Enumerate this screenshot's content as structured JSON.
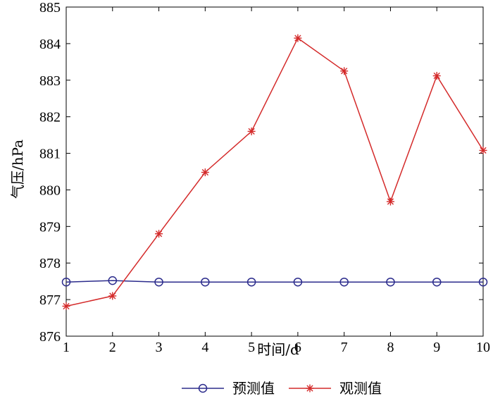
{
  "chart_data": {
    "type": "line",
    "title": "",
    "xlabel": "时间/d",
    "ylabel": "气压/hPa",
    "x": [
      1,
      2,
      3,
      4,
      5,
      6,
      7,
      8,
      9,
      10
    ],
    "xlim": [
      1,
      10
    ],
    "ylim": [
      876,
      885
    ],
    "xticks": [
      "1",
      "2",
      "3",
      "4",
      "5",
      "6",
      "7",
      "8",
      "9",
      "10"
    ],
    "yticks": [
      "876",
      "877",
      "878",
      "879",
      "880",
      "881",
      "882",
      "883",
      "884",
      "885"
    ],
    "grid": false,
    "legend_position": "bottom",
    "series": [
      {
        "name": "预测值",
        "marker": "circle",
        "color": "#2b2b8c",
        "values": [
          877.48,
          877.52,
          877.48,
          877.48,
          877.48,
          877.48,
          877.48,
          877.48,
          877.48,
          877.48
        ]
      },
      {
        "name": "观测值",
        "marker": "star",
        "color": "#d42a2a",
        "values": [
          876.82,
          877.1,
          878.8,
          880.48,
          881.6,
          884.15,
          883.25,
          879.68,
          883.12,
          881.08
        ]
      }
    ]
  }
}
